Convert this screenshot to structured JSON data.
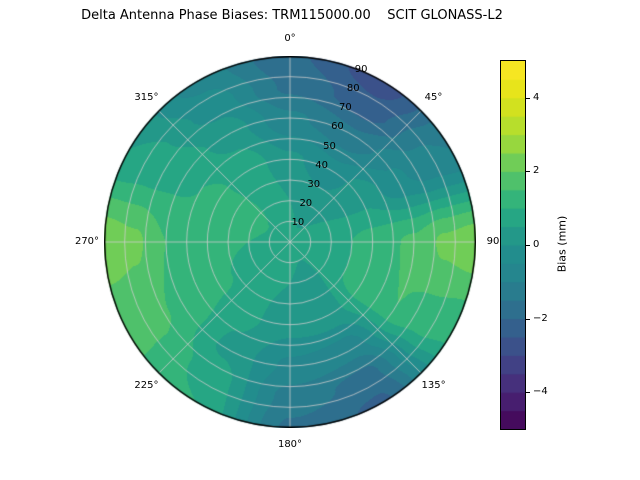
{
  "title": "Delta Antenna Phase Biases: TRM115000.00    SCIT GLONASS-L2",
  "colors": {
    "background": "#ffffff",
    "text": "#000000",
    "grid_line": "#cdcdcd",
    "outline": "#000000"
  },
  "chart_data": {
    "type": "heatmap",
    "projection": "polar",
    "title": "Delta Antenna Phase Biases: TRM115000.00    SCIT GLONASS-L2",
    "antenna": "TRM115000.00",
    "signal": "SCIT GLONASS-L2",
    "azimuth_ticks": [
      {
        "angle_deg": 0,
        "label": "0°"
      },
      {
        "angle_deg": 45,
        "label": "45°"
      },
      {
        "angle_deg": 90,
        "label": "90"
      },
      {
        "angle_deg": 135,
        "label": "135°"
      },
      {
        "angle_deg": 180,
        "label": "180°"
      },
      {
        "angle_deg": 225,
        "label": "225°"
      },
      {
        "angle_deg": 270,
        "label": "270°"
      },
      {
        "angle_deg": 315,
        "label": "315°"
      }
    ],
    "radial_ticks": [
      10,
      20,
      30,
      40,
      50,
      60,
      70,
      80,
      90
    ],
    "radial_label_angle_deg": 22.5,
    "grid_lines": {
      "radial_step": 10,
      "azimuth_step_deg": 45
    },
    "colorbar": {
      "label": "Bias (mm)",
      "tick_values": [
        4,
        2,
        0,
        -2,
        -4
      ],
      "tick_labels": [
        "4",
        "2",
        "0",
        "−2",
        "−4"
      ],
      "range": [
        -5,
        5
      ],
      "colormap": "viridis",
      "colormap_stops": [
        "#440154",
        "#482878",
        "#3e4989",
        "#31688e",
        "#26828e",
        "#21918c",
        "#27ad81",
        "#5cc863",
        "#aadc32",
        "#dfe318",
        "#fde725"
      ],
      "level_step_mm": 0.5
    },
    "grid": {
      "azimuth_deg": [
        0,
        30,
        60,
        90,
        120,
        150,
        180,
        210,
        240,
        270,
        300,
        330,
        360
      ],
      "zenith_deg": [
        0,
        20,
        40,
        60,
        75,
        90
      ],
      "bias_mm": [
        [
          0.6,
          0.6,
          0.6,
          0.6,
          0.6,
          0.6,
          0.6,
          0.6,
          0.6,
          0.6,
          0.6,
          0.6,
          0.6
        ],
        [
          0.5,
          0.3,
          0.5,
          0.8,
          0.7,
          0.4,
          0.5,
          0.6,
          0.8,
          1.0,
          1.2,
          0.9,
          0.5
        ],
        [
          0.1,
          -0.3,
          0.4,
          1.2,
          1.3,
          0.3,
          0.2,
          0.6,
          1.1,
          1.3,
          1.1,
          0.8,
          0.1
        ],
        [
          -0.9,
          -1.4,
          -0.4,
          1.6,
          1.5,
          -0.8,
          -0.6,
          0.4,
          1.4,
          1.5,
          0.9,
          0.3,
          -0.9
        ],
        [
          -1.6,
          -2.3,
          -0.8,
          2.1,
          1.3,
          -1.7,
          -1.2,
          0.8,
          1.6,
          2.1,
          0.7,
          -0.2,
          -1.6
        ],
        [
          -1.9,
          -2.8,
          -1.0,
          2.3,
          1.1,
          -2.1,
          -1.6,
          1.0,
          1.6,
          2.3,
          0.5,
          -0.7,
          -1.9
        ]
      ]
    }
  }
}
